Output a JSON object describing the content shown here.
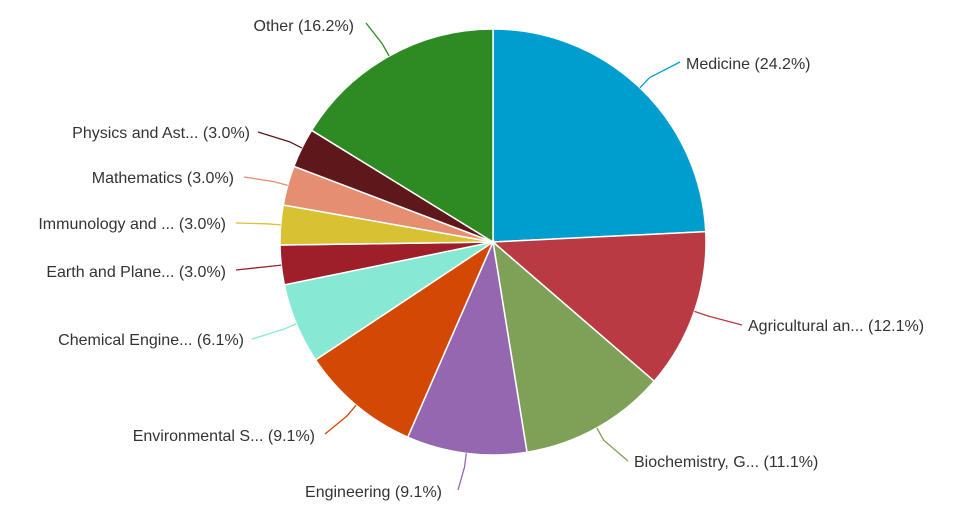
{
  "chart_data": {
    "type": "pie",
    "title": "",
    "slices": [
      {
        "label": "Medicine (24.2%)",
        "value": 24.2,
        "color": "#009ecf"
      },
      {
        "label": "Agricultural an... (12.1%)",
        "value": 12.1,
        "color": "#b93a42"
      },
      {
        "label": "Biochemistry, G... (11.1%)",
        "value": 11.1,
        "color": "#7fa157"
      },
      {
        "label": "Engineering (9.1%)",
        "value": 9.1,
        "color": "#9467b0"
      },
      {
        "label": "Environmental S... (9.1%)",
        "value": 9.1,
        "color": "#d44805"
      },
      {
        "label": "Chemical Engine... (6.1%)",
        "value": 6.1,
        "color": "#87e9d4"
      },
      {
        "label": "Earth and Plane... (3.0%)",
        "value": 3.0,
        "color": "#9e1f2a"
      },
      {
        "label": "Immunology and ... (3.0%)",
        "value": 3.0,
        "color": "#d8c132"
      },
      {
        "label": "Mathematics (3.0%)",
        "value": 3.0,
        "color": "#e68e72"
      },
      {
        "label": "Physics and Ast... (3.0%)",
        "value": 3.0,
        "color": "#5e171b"
      },
      {
        "label": "Other (16.2%)",
        "value": 16.2,
        "color": "#2e8b23"
      }
    ]
  }
}
